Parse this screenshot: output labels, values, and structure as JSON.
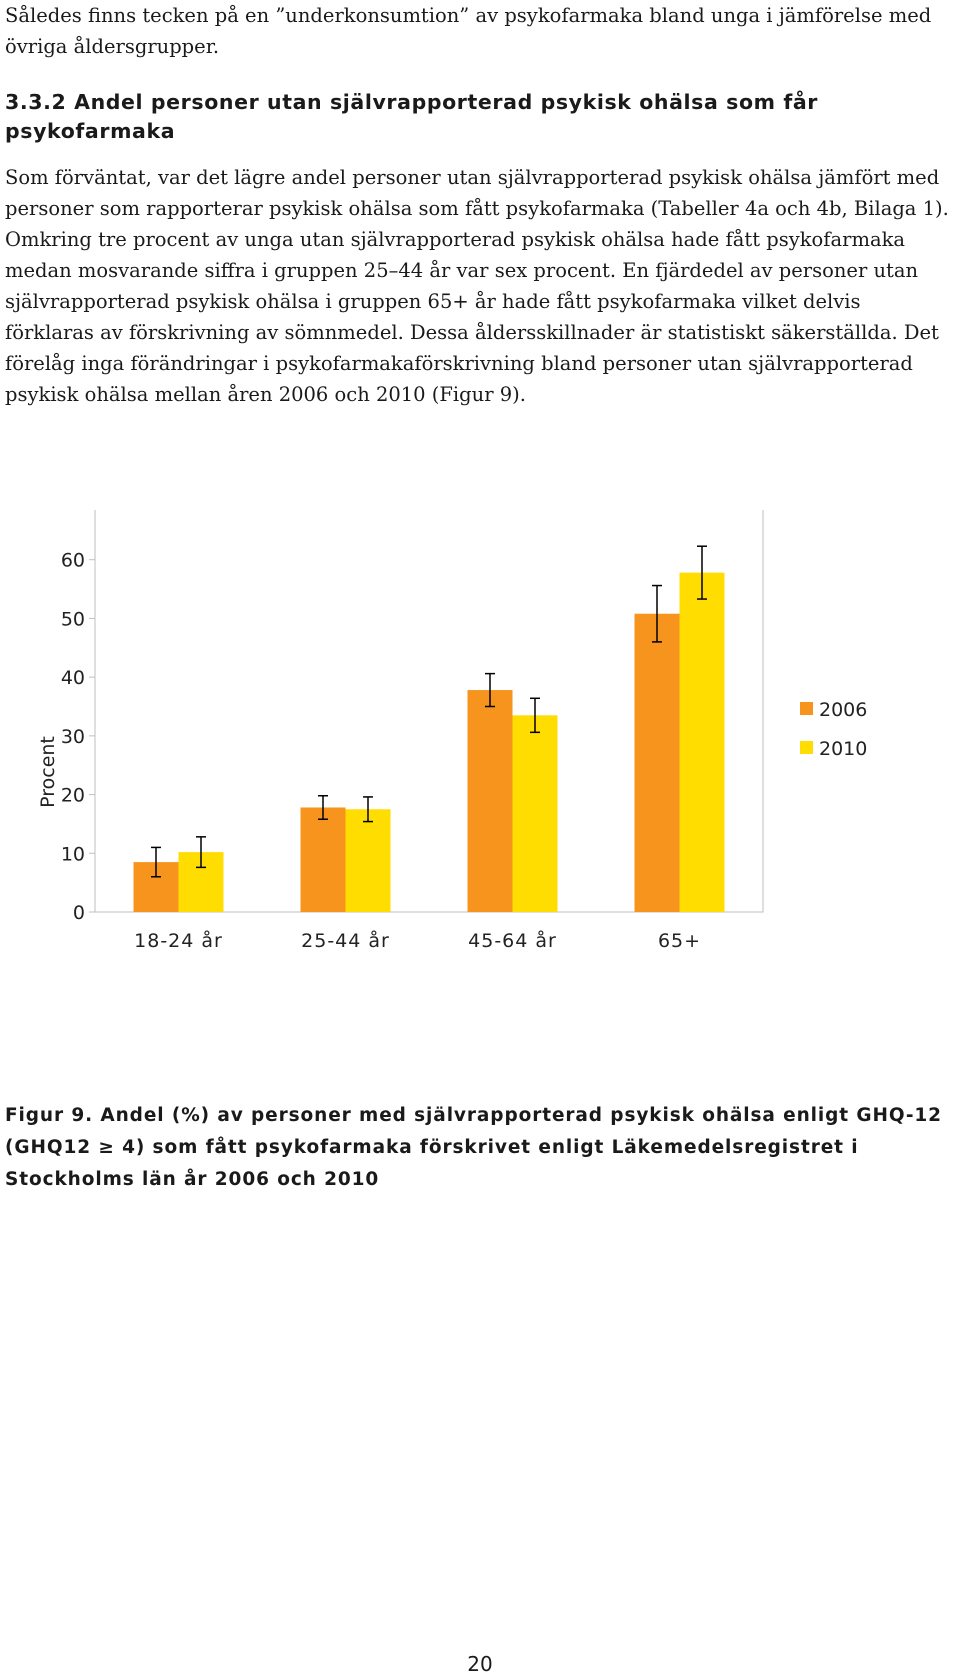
{
  "document": {
    "intro_text": "Således finns tecken på en ”underkonsumtion” av psykofarmaka bland unga i jämförelse med övriga åldersgrupper.",
    "section_heading": "3.3.2 Andel personer utan självrapporterad psykisk ohälsa som får psykofarmaka",
    "paragraph": "Som förväntat, var det lägre andel personer utan självrapporterad psykisk ohälsa jämfört med personer som rapporterar psykisk ohälsa som fått psykofarmaka (Tabeller 4a och 4b, Bilaga 1). Omkring tre procent av unga utan självrapporterad psykisk ohälsa hade fått psykofarmaka medan mosvarande siffra i gruppen 25–44 år var sex procent. En fjärdedel av personer utan självrapporterad psykisk ohälsa i gruppen 65+ år hade fått psykofarmaka vilket delvis förklaras av förskrivning av sömnmedel. Dessa åldersskillnader är statistiskt säkerställda. Det förelåg inga förändringar i psykofarmakaförskrivning bland personer utan självrapporterad psykisk ohälsa mellan åren 2006 och 2010 (Figur 9).",
    "figure_caption": "Figur 9. Andel (%) av personer med självrapporterad psykisk ohälsa enligt GHQ-12 (GHQ12 ≥ 4) som fått psykofarmaka förskrivet enligt Läkemedelsregistret i Stockholms län år 2006 och 2010",
    "page_number": "20"
  },
  "chart_data": {
    "type": "bar",
    "categories": [
      "18-24 år",
      "25-44 år",
      "45-64 år",
      "65+"
    ],
    "series": [
      {
        "name": "2006",
        "color": "#F7941D",
        "values": [
          8.5,
          17.8,
          37.8,
          50.8
        ],
        "error": [
          2.5,
          2.0,
          2.8,
          4.8
        ]
      },
      {
        "name": "2010",
        "color": "#FFDD00",
        "values": [
          10.2,
          17.5,
          33.5,
          57.8
        ],
        "error": [
          2.6,
          2.1,
          2.9,
          4.5
        ]
      }
    ],
    "ylabel": "Procent",
    "ylim": [
      0,
      70
    ],
    "yticks": [
      "0",
      "10",
      "20",
      "30",
      "40",
      "50",
      "60",
      "70"
    ],
    "grid": false,
    "legend": "right"
  }
}
